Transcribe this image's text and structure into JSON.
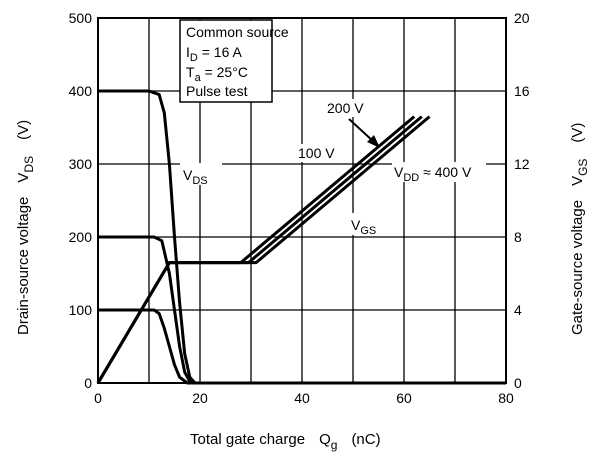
{
  "chart_data": {
    "type": "line",
    "title": "",
    "x_axis": {
      "label_main": "Total gate charge",
      "label_symbol": "Q",
      "label_sub": "g",
      "label_unit": "(nC)",
      "range": [
        0,
        80
      ],
      "ticks": [
        0,
        20,
        40,
        60,
        80
      ]
    },
    "y_left": {
      "label_main": "Drain-source voltage",
      "label_symbol": "V",
      "label_sub": "DS",
      "label_unit": "(V)",
      "range": [
        0,
        500
      ],
      "ticks": [
        0,
        100,
        200,
        300,
        400,
        500
      ]
    },
    "y_right": {
      "label_main": "Gate-source voltage",
      "label_symbol": "V",
      "label_sub": "GS",
      "label_unit": "(V)",
      "range": [
        0,
        20
      ],
      "ticks": [
        0,
        4,
        8,
        12,
        16,
        20
      ]
    },
    "grid": true,
    "conditions_box": {
      "line1": "Common source",
      "line2": {
        "sym": "I",
        "sub": "D",
        "rest": " = 16 A"
      },
      "line3": {
        "sym": "T",
        "sub": "a",
        "rest": " = 25°C"
      },
      "line4": "Pulse test"
    },
    "annotations": {
      "vds": {
        "sym": "V",
        "sub": "DS"
      },
      "vgs": {
        "sym": "V",
        "sub": "GS"
      },
      "v200": "200 V",
      "v100": "100 V",
      "v400": {
        "sym": "V",
        "sub": "DD",
        "rest": " ≈ 400 V"
      }
    },
    "series": [
      {
        "axis": "left",
        "points": [
          [
            0,
            400
          ],
          [
            10,
            400
          ],
          [
            12,
            395
          ],
          [
            13,
            370
          ],
          [
            14,
            300
          ],
          [
            15,
            200
          ],
          [
            16,
            110
          ],
          [
            17,
            40
          ],
          [
            18,
            8
          ],
          [
            19,
            0
          ],
          [
            80,
            0
          ]
        ]
      },
      {
        "axis": "left",
        "points": [
          [
            0,
            200
          ],
          [
            11,
            200
          ],
          [
            12.5,
            195
          ],
          [
            14,
            150
          ],
          [
            15,
            100
          ],
          [
            16,
            50
          ],
          [
            17,
            15
          ],
          [
            18,
            2
          ],
          [
            19,
            0
          ],
          [
            80,
            0
          ]
        ]
      },
      {
        "axis": "left",
        "points": [
          [
            0,
            100
          ],
          [
            11,
            100
          ],
          [
            12,
            95
          ],
          [
            13,
            75
          ],
          [
            14,
            50
          ],
          [
            15,
            25
          ],
          [
            16,
            8
          ],
          [
            17.5,
            0
          ],
          [
            80,
            0
          ]
        ]
      },
      {
        "axis": "right",
        "points": [
          [
            0,
            0
          ],
          [
            14,
            6.6
          ],
          [
            28,
            6.6
          ],
          [
            62,
            14.6
          ]
        ]
      },
      {
        "axis": "right",
        "points": [
          [
            0,
            0
          ],
          [
            14,
            6.6
          ],
          [
            29.5,
            6.6
          ],
          [
            63.5,
            14.6
          ]
        ]
      },
      {
        "axis": "right",
        "points": [
          [
            0,
            0
          ],
          [
            14,
            6.6
          ],
          [
            31,
            6.6
          ],
          [
            65,
            14.6
          ]
        ]
      }
    ]
  }
}
